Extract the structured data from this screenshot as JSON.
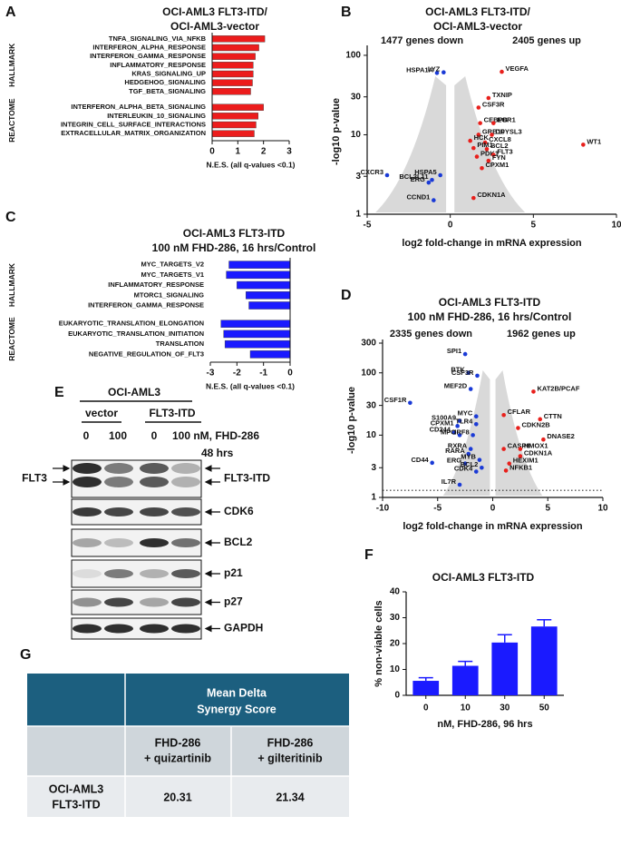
{
  "chart_data": [
    {
      "panel": "A",
      "type": "bar",
      "orientation": "horizontal",
      "title": [
        "OCI-AML3 FLT3-ITD/",
        "OCI-AML3-vector"
      ],
      "groups": [
        {
          "name": "HALLMARK",
          "categories": [
            "TNFA_SIGNALING_VIA_NFKB",
            "INTERFERON_ALPHA_RESPONSE",
            "INTERFERON_GAMMA_RESPONSE",
            "INFLAMMATORY_RESPONSE",
            "KRAS_SIGNALING_UP",
            "HEDGEHOG_SIGNALING",
            "TGF_BETA_SIGNALING"
          ],
          "values": [
            2.05,
            1.82,
            1.68,
            1.6,
            1.6,
            1.57,
            1.5
          ]
        },
        {
          "name": "REACTOME",
          "categories": [
            "INTERFERON_ALPHA_BETA_SIGNALING",
            "INTERLEUKIN_10_SIGNALING",
            "INTEGRIN_CELL_SURFACE_INTERACTIONS",
            "EXTRACELLULAR_MATRIX_ORGANIZATION"
          ],
          "values": [
            2.0,
            1.79,
            1.71,
            1.64
          ]
        }
      ],
      "color": "#ec1c1c",
      "xlabel": "N.E.S. (all q-values <0.1)",
      "xlim": [
        0,
        3
      ],
      "xticks": [
        0,
        1,
        2,
        3
      ]
    },
    {
      "panel": "B",
      "type": "scatter",
      "title": [
        "OCI-AML3 FLT3-ITD/",
        "OCI-AML3-vector"
      ],
      "annotations": [
        "1477 genes down",
        "2405 genes up"
      ],
      "xlabel": "log2 fold-change in mRNA expression",
      "ylabel": "-log10 p-value",
      "ylog": true,
      "xlim": [
        -5,
        10
      ],
      "xticks": [
        -5,
        0,
        5,
        10
      ],
      "ylim": [
        1,
        120
      ],
      "yticks": [
        1,
        3,
        10,
        30,
        100
      ],
      "series": [
        {
          "color": "#e8201c",
          "labels": [
            "VEGFA",
            "TXNIP",
            "CSF3R",
            "CEBPB",
            "EGR1",
            "GRB10",
            "DPYSL3",
            "HCK",
            "CXCL8",
            "PIM1",
            "BCL2",
            "PDK1",
            "FLT3",
            "FYN",
            "CPXM1",
            "WT1",
            "CDKN1A"
          ],
          "x": [
            3.1,
            2.3,
            1.7,
            1.8,
            2.6,
            1.7,
            2.5,
            1.2,
            2.1,
            1.4,
            2.2,
            1.6,
            2.6,
            2.3,
            1.9,
            8.0,
            1.4
          ],
          "values": [
            62,
            29,
            22,
            14,
            14,
            10,
            10,
            8.4,
            8,
            6.8,
            6.6,
            5.3,
            5.6,
            4.7,
            3.8,
            7.5,
            1.6
          ]
        },
        {
          "color": "#1a3ad6",
          "labels": [
            "HSPA1A",
            "LYZ",
            "CXCR3",
            "HSPA5",
            "BCL2L11",
            "ERG",
            "CCND1"
          ],
          "x": [
            -0.8,
            -0.4,
            -3.8,
            -0.6,
            -1.1,
            -1.3,
            -1.0
          ],
          "values": [
            60,
            61,
            3.1,
            3.1,
            2.7,
            2.5,
            1.5
          ]
        }
      ]
    },
    {
      "panel": "C",
      "type": "bar",
      "orientation": "horizontal",
      "title": [
        "OCI-AML3 FLT3-ITD",
        "100 nM FHD-286, 16 hrs/Control"
      ],
      "groups": [
        {
          "name": "HALLMARK",
          "categories": [
            "MYC_TARGETS_V2",
            "MYC_TARGETS_V1",
            "INFLAMMATORY_RESPONSE",
            "MTORC1_SIGNALING",
            "INTERFERON_GAMMA_RESPONSE"
          ],
          "values": [
            -2.3,
            -2.4,
            -2.0,
            -1.66,
            -1.55
          ]
        },
        {
          "name": "REACTOME",
          "categories": [
            "EUKARYOTIC_TRANSLATION_ELONGATION",
            "EUKARYOTIC_TRANSLATION_INITIATION",
            "TRANSLATION",
            "NEGATIVE_REGULATION_OF_FLT3"
          ],
          "values": [
            -2.6,
            -2.5,
            -2.45,
            -1.5
          ]
        }
      ],
      "color": "#1a1aff",
      "xlabel": "N.E.S. (all q-values <0.1)",
      "xlim": [
        -3,
        0
      ],
      "xticks": [
        -3,
        -2,
        -1,
        0
      ]
    },
    {
      "panel": "D",
      "type": "scatter",
      "title": [
        "OCI-AML3 FLT3-ITD",
        "100 nM FHD-286, 16 hrs/Control"
      ],
      "annotations": [
        "2335 genes down",
        "1962 genes up"
      ],
      "xlabel": "log2 fold-change in mRNA expression",
      "ylabel": "-log10 p-value",
      "ylog": true,
      "xlim": [
        -10,
        10
      ],
      "xticks": [
        -10,
        -5,
        0,
        5,
        10
      ],
      "ylim": [
        1,
        300
      ],
      "yticks": [
        1,
        3,
        10,
        30,
        100,
        300
      ],
      "hline": 1.3,
      "series": [
        {
          "color": "#e8201c",
          "labels": [
            "KAT2B/PCAF",
            "CFLAR",
            "CTTN",
            "CDKN2B",
            "DNASE2",
            "CASP8",
            "HMOX1",
            "CDKN1A",
            "HEXIM1",
            "NFKB1"
          ],
          "x": [
            3.7,
            1.0,
            4.3,
            2.3,
            4.6,
            1.0,
            2.5,
            2.5,
            1.5,
            1.2
          ],
          "values": [
            50,
            21,
            18,
            13,
            8.5,
            6,
            6,
            4.6,
            3.5,
            2.7
          ]
        },
        {
          "color": "#1a3ad6",
          "labels": [
            "SPI1",
            "BTK",
            "CSF3R",
            "MEF2D",
            "CSF1R",
            "MYC",
            "S100A9",
            "TLR4",
            "CPXM1",
            "CD244",
            "MPO",
            "IRF8",
            "RXRA",
            "RARA",
            "MYB",
            "ERG",
            "BCL2",
            "CD44",
            "CDK4",
            "IL7R"
          ],
          "x": [
            -2.5,
            -2.2,
            -1.4,
            -2.0,
            -7.5,
            -1.5,
            -3.0,
            -1.5,
            -3.2,
            -3.5,
            -3.0,
            -1.8,
            -2.0,
            -2.2,
            -1.2,
            -2.5,
            -1.0,
            -5.5,
            -1.5,
            -3.0
          ],
          "values": [
            200,
            100,
            90,
            55,
            33,
            20,
            17,
            15,
            14,
            11,
            10,
            10,
            6,
            5,
            4,
            3.5,
            3,
            3.6,
            2.6,
            1.6
          ]
        }
      ]
    },
    {
      "panel": "F",
      "type": "bar",
      "orientation": "vertical",
      "title": "OCI-AML3 FLT3-ITD",
      "categories": [
        "0",
        "10",
        "30",
        "50"
      ],
      "values": [
        5.6,
        11.4,
        20.4,
        26.6
      ],
      "errors": [
        1.2,
        1.7,
        3.0,
        2.6
      ],
      "color": "#1a1aff",
      "xlabel": "nM, FHD-286, 96 hrs",
      "ylabel": "% non-viable cells",
      "ylim": [
        0,
        40
      ],
      "yticks": [
        0,
        10,
        20,
        30,
        40
      ]
    }
  ],
  "blot": {
    "panel": "E",
    "cell_line": "OCI-AML3",
    "groups": [
      "vector",
      "FLT3-ITD"
    ],
    "doses": [
      "0",
      "100",
      "0",
      "100 nM, FHD-286"
    ],
    "duration": "48 hrs",
    "side_label": "FLT3",
    "proteins": [
      "FLT3-ITD",
      "CDK6",
      "BCL2",
      "p21",
      "p27",
      "GAPDH"
    ]
  },
  "table": {
    "panel": "G",
    "header": [
      "Mean Delta",
      "Synergy Score"
    ],
    "columns": [
      [
        "FHD-286",
        "+ quizartinib"
      ],
      [
        "FHD-286",
        "+ gilteritinib"
      ]
    ],
    "rows": [
      {
        "label": [
          "OCI-AML3",
          "FLT3-ITD"
        ],
        "values": [
          20.31,
          21.34
        ]
      }
    ]
  }
}
